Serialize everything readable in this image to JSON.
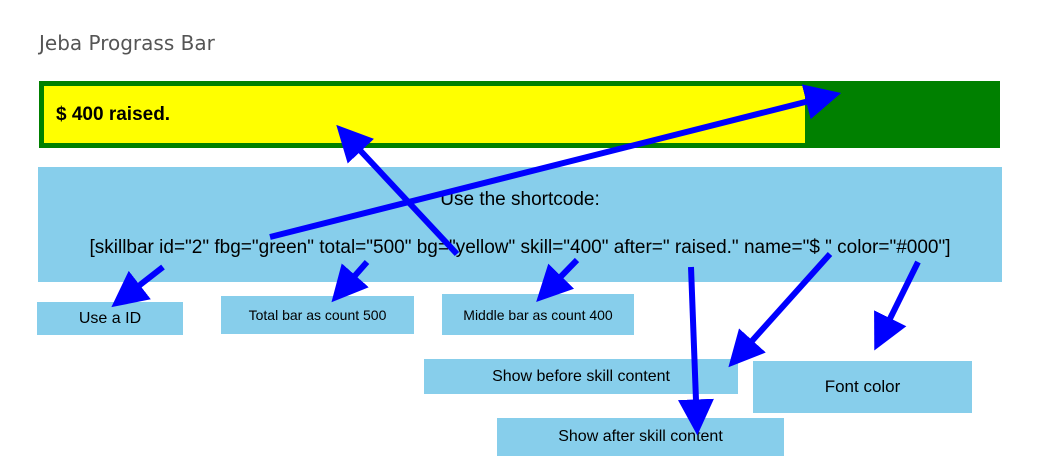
{
  "page": {
    "title": "Jeba Prograss Bar"
  },
  "progress_bar": {
    "label": "$ 400 raised.",
    "skill": 400,
    "total": 500,
    "bar_color": "#ffff00",
    "background_color": "#008000",
    "font_color": "#000000"
  },
  "shortcode": {
    "heading": "Use the shortcode:",
    "code": "[skillbar id=\"2\" fbg=\"green\" total=\"500\" bg=\"yellow\" skill=\"400\" after=\" raised.\" name=\"$ \" color=\"#000\"]"
  },
  "annotations": {
    "use_id": "Use a ID",
    "total_bar": "Total bar as count 500",
    "middle_bar": "Middle bar as count 400",
    "before_content": "Show before skill content",
    "font_color": "Font color",
    "after_content": "Show after skill content"
  },
  "colors": {
    "arrow": "#0000ff",
    "note_background": "#87ceeb"
  }
}
